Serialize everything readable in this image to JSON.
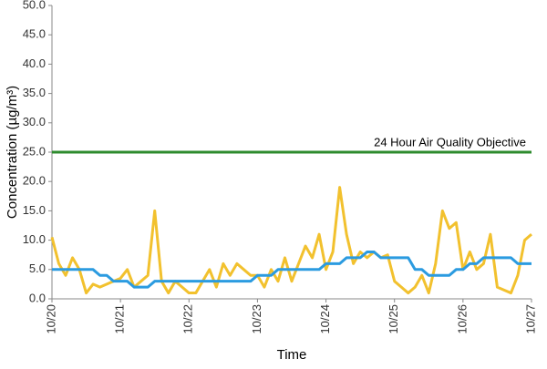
{
  "chart_data": {
    "type": "line",
    "ylabel": "Concentration (µg/m³)",
    "xlabel": "Time",
    "xlim": [
      0,
      7
    ],
    "xticks": [
      {
        "value": 0,
        "label": "10/20"
      },
      {
        "value": 1,
        "label": "10/21"
      },
      {
        "value": 2,
        "label": "10/22"
      },
      {
        "value": 3,
        "label": "10/23"
      },
      {
        "value": 4,
        "label": "10/24"
      },
      {
        "value": 5,
        "label": "10/25"
      },
      {
        "value": 6,
        "label": "10/26"
      },
      {
        "value": 7,
        "label": "10/27"
      }
    ],
    "ylim": [
      0,
      50
    ],
    "yticks": [
      {
        "value": 0,
        "label": "0.0"
      },
      {
        "value": 5,
        "label": "5.0"
      },
      {
        "value": 10,
        "label": "10.0"
      },
      {
        "value": 15,
        "label": "15.0"
      },
      {
        "value": 20,
        "label": "20.0"
      },
      {
        "value": 25,
        "label": "25.0"
      },
      {
        "value": 30,
        "label": "30.0"
      },
      {
        "value": 35,
        "label": "35.0"
      },
      {
        "value": 40,
        "label": "40.0"
      },
      {
        "value": 45,
        "label": "45.0"
      },
      {
        "value": 50,
        "label": "50.0"
      }
    ],
    "grid": false,
    "x": [
      0,
      0.1,
      0.2,
      0.3,
      0.4,
      0.5,
      0.6,
      0.7,
      0.8,
      0.9,
      1,
      1.1,
      1.2,
      1.3,
      1.4,
      1.5,
      1.6,
      1.7,
      1.8,
      1.9,
      2,
      2.1,
      2.2,
      2.3,
      2.4,
      2.5,
      2.6,
      2.7,
      2.8,
      2.9,
      3,
      3.1,
      3.2,
      3.3,
      3.4,
      3.5,
      3.6,
      3.7,
      3.8,
      3.9,
      4,
      4.1,
      4.2,
      4.3,
      4.4,
      4.5,
      4.6,
      4.7,
      4.8,
      4.9,
      5,
      5.1,
      5.2,
      5.3,
      5.4,
      5.5,
      5.6,
      5.7,
      5.8,
      5.9,
      6,
      6.1,
      6.2,
      6.3,
      6.4,
      6.5,
      6.6,
      6.7,
      6.8,
      6.9,
      7
    ],
    "series": [
      {
        "color": "#f2c12e",
        "values": [
          10.5,
          6,
          4,
          7,
          5,
          1,
          2.5,
          2,
          2.5,
          3,
          3.5,
          5,
          2,
          3,
          4,
          15,
          3,
          1,
          3,
          2,
          1,
          1,
          3,
          5,
          2,
          6,
          4,
          6,
          5,
          4,
          4,
          2,
          5,
          3,
          7,
          3,
          6,
          9,
          7,
          11,
          5,
          8,
          19,
          11,
          6,
          8,
          7,
          8,
          7,
          7.5,
          3,
          2,
          1,
          2,
          4,
          1,
          6,
          15,
          12,
          13,
          5,
          8,
          5,
          6,
          11,
          2,
          1.5,
          1,
          4,
          10,
          11
        ]
      },
      {
        "color": "#2b9be0",
        "values": [
          5,
          5,
          5,
          5,
          5,
          5,
          5,
          4,
          4,
          3,
          3,
          3,
          2,
          2,
          2,
          3,
          3,
          3,
          3,
          3,
          3,
          3,
          3,
          3,
          3,
          3,
          3,
          3,
          3,
          3,
          4,
          4,
          4,
          5,
          5,
          5,
          5,
          5,
          5,
          5,
          6,
          6,
          6,
          7,
          7,
          7,
          8,
          8,
          7,
          7,
          7,
          7,
          7,
          5,
          5,
          4,
          4,
          4,
          4,
          5,
          5,
          6,
          6,
          7,
          7,
          7,
          7,
          7,
          6,
          6,
          6
        ]
      }
    ],
    "annotation": {
      "value": 25,
      "label": "24 Hour Air Quality Objective",
      "color": "#2e8b2e"
    }
  }
}
